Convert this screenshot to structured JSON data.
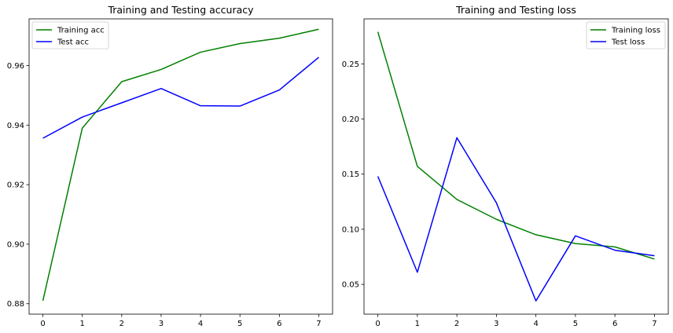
{
  "chart_data": [
    {
      "type": "line",
      "title": "Training and Testing accuracy",
      "xlabel": "",
      "ylabel": "",
      "x": [
        0,
        1,
        2,
        3,
        4,
        5,
        6,
        7
      ],
      "xlim": [
        -0.35,
        7.35
      ],
      "ylim": [
        0.8765,
        0.9757
      ],
      "xticks": [
        0,
        1,
        2,
        3,
        4,
        5,
        6,
        7
      ],
      "yticks": [
        0.88,
        0.9,
        0.92,
        0.94,
        0.96
      ],
      "ytick_labels": [
        "0.88",
        "0.90",
        "0.92",
        "0.94",
        "0.96"
      ],
      "grid": false,
      "legend_position": "top-left",
      "series": [
        {
          "name": "Training acc",
          "color": "#008000",
          "values": [
            0.881,
            0.939,
            0.9546,
            0.9587,
            0.9645,
            0.9674,
            0.9692,
            0.9722
          ]
        },
        {
          "name": "Test acc",
          "color": "#0000ff",
          "values": [
            0.9356,
            0.9427,
            0.9475,
            0.9523,
            0.9465,
            0.9464,
            0.9518,
            0.9628
          ]
        }
      ]
    },
    {
      "type": "line",
      "title": "Training and Testing loss",
      "xlabel": "",
      "ylabel": "",
      "x": [
        0,
        1,
        2,
        3,
        4,
        5,
        6,
        7
      ],
      "xlim": [
        -0.35,
        7.35
      ],
      "ylim": [
        0.023,
        0.2908
      ],
      "xticks": [
        0,
        1,
        2,
        3,
        4,
        5,
        6,
        7
      ],
      "yticks": [
        0.05,
        0.1,
        0.15,
        0.2,
        0.25
      ],
      "ytick_labels": [
        "0.05",
        "0.10",
        "0.15",
        "0.20",
        "0.25"
      ],
      "grid": false,
      "legend_position": "top-right",
      "series": [
        {
          "name": "Training loss",
          "color": "#008000",
          "values": [
            0.279,
            0.157,
            0.127,
            0.109,
            0.095,
            0.087,
            0.084,
            0.073
          ]
        },
        {
          "name": "Test loss",
          "color": "#0000ff",
          "values": [
            0.148,
            0.061,
            0.183,
            0.124,
            0.035,
            0.094,
            0.081,
            0.076
          ]
        }
      ]
    }
  ]
}
